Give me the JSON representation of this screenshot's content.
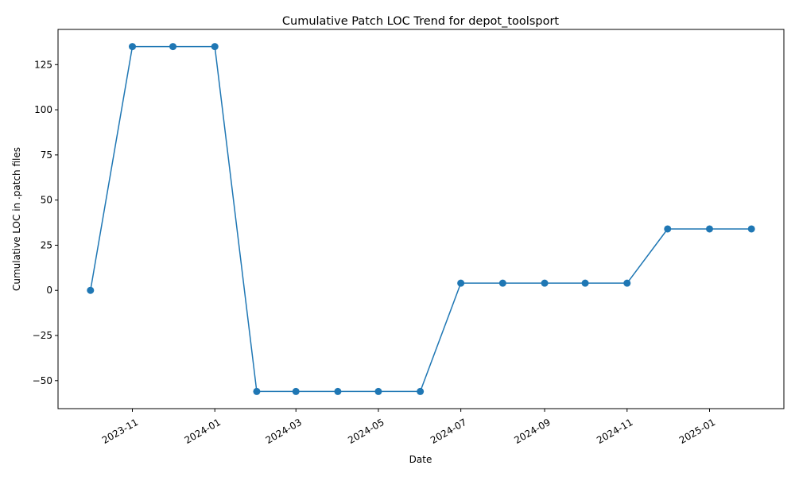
{
  "chart_data": {
    "type": "line",
    "title": "Cumulative Patch LOC Trend for depot_toolsport",
    "xlabel": "Date",
    "ylabel": "Cumulative LOC in .patch files",
    "x": [
      "2023-10-01",
      "2023-11-01",
      "2023-12-01",
      "2024-01-01",
      "2024-02-01",
      "2024-03-01",
      "2024-04-01",
      "2024-05-01",
      "2024-06-01",
      "2024-07-01",
      "2024-08-01",
      "2024-09-01",
      "2024-10-01",
      "2024-11-01",
      "2024-12-01",
      "2025-01-01",
      "2025-02-01"
    ],
    "series": [
      {
        "values": [
          0,
          135,
          135,
          135,
          -56,
          -56,
          -56,
          -56,
          -56,
          4,
          4,
          4,
          4,
          4,
          34,
          34,
          34
        ]
      }
    ],
    "xlim": [
      "2023-09-07",
      "2025-02-25"
    ],
    "ylim": [
      -65.5,
      144.5
    ],
    "xticks": [
      "2023-11",
      "2024-01",
      "2024-03",
      "2024-05",
      "2024-07",
      "2024-09",
      "2024-11",
      "2025-01"
    ],
    "yticks": [
      "−50",
      "−25",
      "0",
      "25",
      "50",
      "75",
      "100",
      "125"
    ],
    "grid": false,
    "legend": "none",
    "color": "#1f77b4"
  }
}
